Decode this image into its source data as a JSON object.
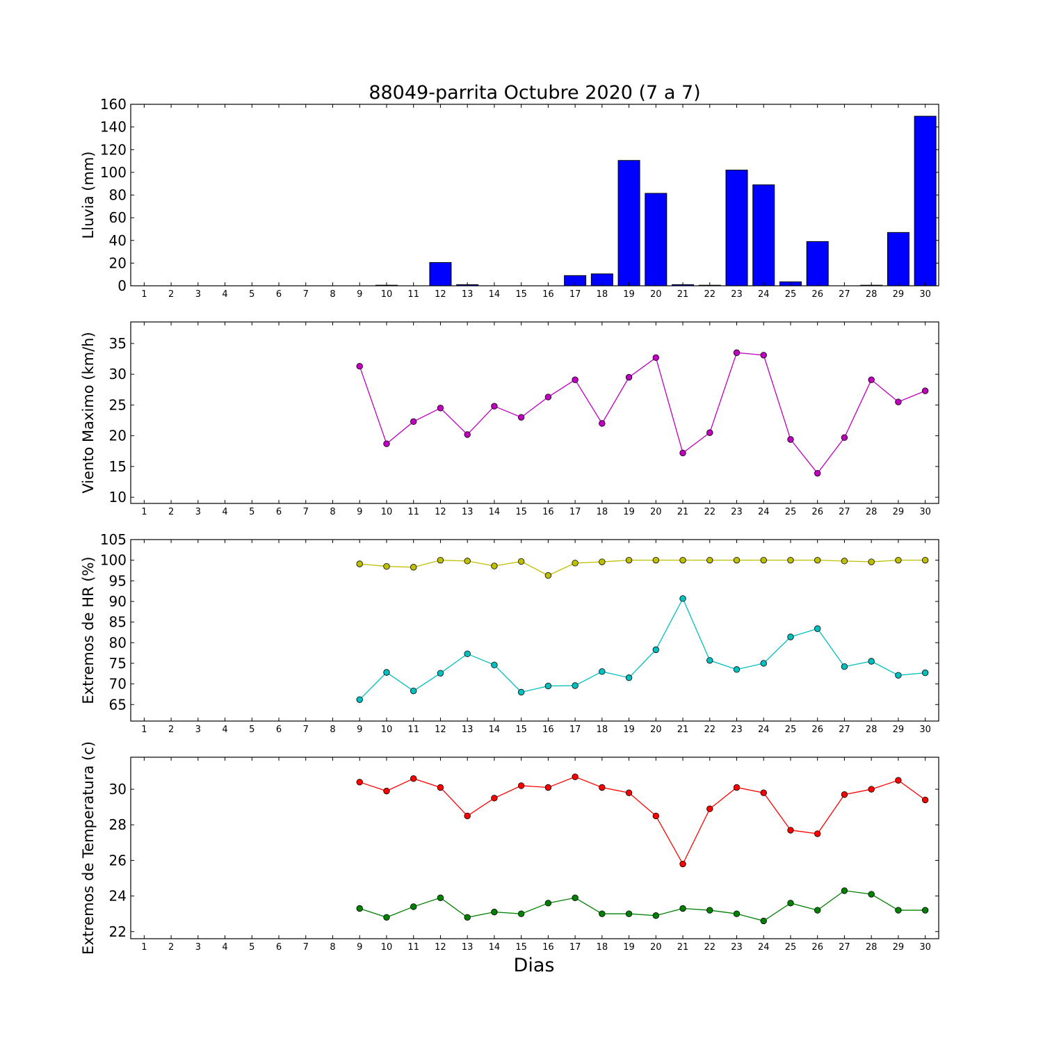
{
  "chart_data": [
    {
      "type": "bar",
      "title": "88049-parrita Octubre 2020  (7 a 7)",
      "ylabel": "Lluvia (mm)",
      "xlabel": "",
      "ylim": [
        0,
        160
      ],
      "yticks": [
        0,
        20,
        40,
        60,
        80,
        100,
        120,
        140,
        160
      ],
      "categories": [
        "1",
        "2",
        "3",
        "4",
        "5",
        "6",
        "7",
        "8",
        "9",
        "10",
        "11",
        "12",
        "13",
        "14",
        "15",
        "16",
        "17",
        "18",
        "19",
        "20",
        "21",
        "22",
        "23",
        "24",
        "25",
        "26",
        "27",
        "28",
        "29",
        "30"
      ],
      "series": [
        {
          "color": "#0000ff",
          "values": [
            0,
            0,
            0,
            0,
            0,
            0,
            0,
            0,
            0,
            0.5,
            0,
            20.5,
            1,
            0,
            0,
            0,
            9,
            10.5,
            110.5,
            81.5,
            1,
            0.5,
            102,
            89,
            3.5,
            39,
            0,
            0.5,
            47,
            149.5
          ]
        }
      ]
    },
    {
      "type": "line",
      "title": "",
      "ylabel": "Viento Maximo (km/h)",
      "xlabel": "",
      "ylim": [
        9,
        38.5
      ],
      "yticks": [
        10,
        15,
        20,
        25,
        30,
        35
      ],
      "categories": [
        "1",
        "2",
        "3",
        "4",
        "5",
        "6",
        "7",
        "8",
        "9",
        "10",
        "11",
        "12",
        "13",
        "14",
        "15",
        "16",
        "17",
        "18",
        "19",
        "20",
        "21",
        "22",
        "23",
        "24",
        "25",
        "26",
        "27",
        "28",
        "29",
        "30"
      ],
      "series": [
        {
          "color": "#bf00bf",
          "values": [
            null,
            null,
            null,
            null,
            null,
            null,
            null,
            null,
            31.3,
            18.7,
            22.3,
            24.5,
            20.2,
            24.8,
            23.0,
            26.3,
            29.1,
            22.0,
            29.5,
            32.7,
            17.2,
            20.5,
            33.5,
            33.1,
            19.4,
            13.9,
            19.7,
            29.1,
            25.5,
            27.3
          ]
        }
      ]
    },
    {
      "type": "line",
      "title": "",
      "ylabel": "Extremos de HR (%)",
      "xlabel": "",
      "ylim": [
        61,
        105
      ],
      "yticks": [
        65,
        70,
        75,
        80,
        85,
        90,
        95,
        100,
        105
      ],
      "categories": [
        "1",
        "2",
        "3",
        "4",
        "5",
        "6",
        "7",
        "8",
        "9",
        "10",
        "11",
        "12",
        "13",
        "14",
        "15",
        "16",
        "17",
        "18",
        "19",
        "20",
        "21",
        "22",
        "23",
        "24",
        "25",
        "26",
        "27",
        "28",
        "29",
        "30"
      ],
      "series": [
        {
          "color": "#bfbf00",
          "values": [
            null,
            null,
            null,
            null,
            null,
            null,
            null,
            null,
            99.1,
            98.5,
            98.3,
            100,
            99.8,
            98.6,
            99.7,
            96.3,
            99.3,
            99.6,
            100,
            100,
            100,
            100,
            100,
            100,
            100,
            100,
            99.8,
            99.6,
            100,
            100
          ]
        },
        {
          "color": "#00bfbf",
          "values": [
            null,
            null,
            null,
            null,
            null,
            null,
            null,
            null,
            66.2,
            72.8,
            68.3,
            72.6,
            77.3,
            74.6,
            68.0,
            69.5,
            69.6,
            73.0,
            71.5,
            78.3,
            90.7,
            75.7,
            73.5,
            75.0,
            81.4,
            83.4,
            74.2,
            75.5,
            72.1,
            72.7
          ]
        }
      ]
    },
    {
      "type": "line",
      "title": "",
      "ylabel": "Extremos de Temperatura (c)",
      "xlabel": "Dias",
      "ylim": [
        21.6,
        31.8
      ],
      "yticks": [
        22,
        24,
        26,
        28,
        30
      ],
      "categories": [
        "1",
        "2",
        "3",
        "4",
        "5",
        "6",
        "7",
        "8",
        "9",
        "10",
        "11",
        "12",
        "13",
        "14",
        "15",
        "16",
        "17",
        "18",
        "19",
        "20",
        "21",
        "22",
        "23",
        "24",
        "25",
        "26",
        "27",
        "28",
        "29",
        "30"
      ],
      "series": [
        {
          "color": "#ff0000",
          "values": [
            null,
            null,
            null,
            null,
            null,
            null,
            null,
            null,
            30.4,
            29.9,
            30.6,
            30.1,
            28.5,
            29.5,
            30.2,
            30.1,
            30.7,
            30.1,
            29.8,
            28.5,
            25.8,
            28.9,
            30.1,
            29.8,
            27.7,
            27.5,
            29.7,
            30.0,
            30.5,
            29.4
          ]
        },
        {
          "color": "#008000",
          "values": [
            null,
            null,
            null,
            null,
            null,
            null,
            null,
            null,
            23.3,
            22.8,
            23.4,
            23.9,
            22.8,
            23.1,
            23.0,
            23.6,
            23.9,
            23.0,
            23.0,
            22.9,
            23.3,
            23.2,
            23.0,
            22.6,
            23.6,
            23.2,
            24.3,
            24.1,
            23.2,
            23.2
          ]
        }
      ]
    }
  ]
}
